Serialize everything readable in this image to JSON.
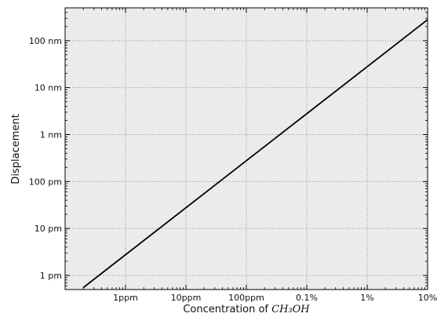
{
  "chart_data": {
    "type": "line",
    "title": "",
    "xlabel_text": "Concentration of ",
    "xlabel_math": "CH₃OH",
    "ylabel": "Displacement",
    "x_scale": "log",
    "y_scale": "log",
    "xlim": [
      "0.1ppm",
      "10%"
    ],
    "ylim": [
      "0.5 pm",
      "500 nm"
    ],
    "x_ticks": [
      {
        "value": "1ppm",
        "label": "1ppm"
      },
      {
        "value": "10ppm",
        "label": "10ppm"
      },
      {
        "value": "100ppm",
        "label": "100ppm"
      },
      {
        "value": "0.1%",
        "label": "0.1%"
      },
      {
        "value": "1%",
        "label": "1%"
      },
      {
        "value": "10%",
        "label": "10%"
      }
    ],
    "y_ticks": [
      {
        "value": "1 pm",
        "label": "1 pm"
      },
      {
        "value": "10 pm",
        "label": "10 pm"
      },
      {
        "value": "100 pm",
        "label": "100 pm"
      },
      {
        "value": "1 nm",
        "label": "1 nm"
      },
      {
        "value": "10 nm",
        "label": "10 nm"
      },
      {
        "value": "100 nm",
        "label": "100 nm"
      }
    ],
    "grid": true,
    "series": [
      {
        "points": [
          {
            "x": "0.2ppm",
            "y": "0.55 pm"
          },
          {
            "x": "10%",
            "y": "280 nm"
          }
        ]
      }
    ],
    "colors": {
      "line": "#000000",
      "plot_background": "#ebebeb",
      "grid": "#8c8c8c"
    }
  }
}
